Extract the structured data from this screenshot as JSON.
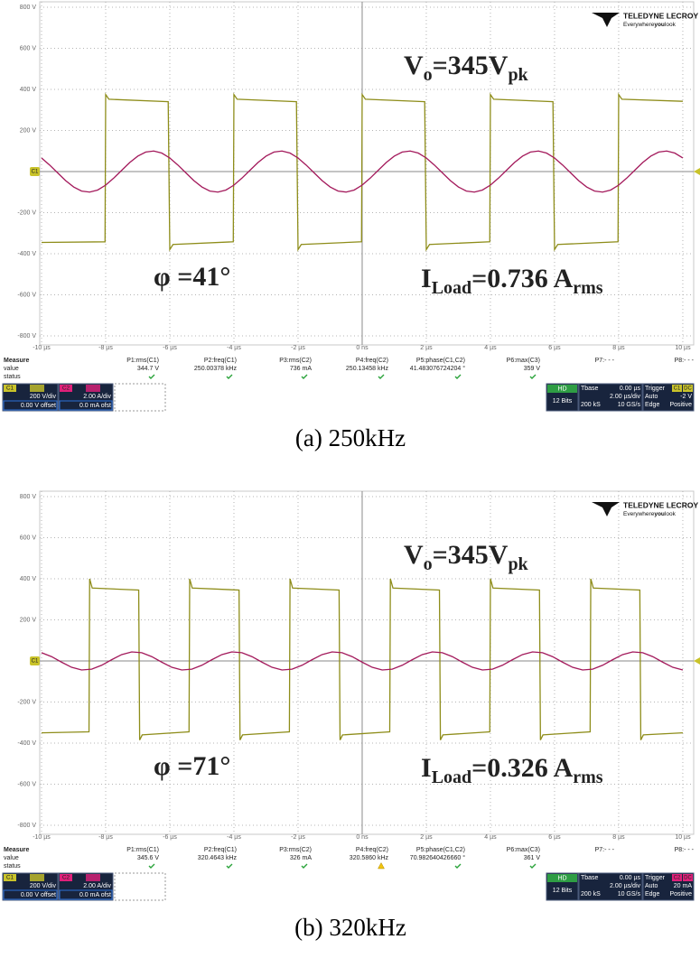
{
  "chart_data": [
    {
      "type": "line",
      "caption": "(a) 250kHz",
      "xlim": [
        -10,
        10.3
      ],
      "ylim": [
        -800,
        800
      ],
      "grid": true,
      "xticks": [
        {
          "value": -10,
          "label": "-10 µs"
        },
        {
          "value": -8,
          "label": "-8 µs"
        },
        {
          "value": -6,
          "label": "-6 µs"
        },
        {
          "value": -4,
          "label": "-4 µs"
        },
        {
          "value": -2,
          "label": "-2 µs"
        },
        {
          "value": 0,
          "label": "0 ns"
        },
        {
          "value": 2,
          "label": "2 µs"
        },
        {
          "value": 4,
          "label": "4 µs"
        },
        {
          "value": 6,
          "label": "6 µs"
        },
        {
          "value": 8,
          "label": "8 µs"
        },
        {
          "value": 10,
          "label": "10 µs"
        }
      ],
      "yticks": [
        {
          "value": 800,
          "label": "800 V"
        },
        {
          "value": 600,
          "label": "600 V"
        },
        {
          "value": 400,
          "label": "400 V"
        },
        {
          "value": 200,
          "label": "200 V"
        },
        0,
        {
          "value": -200,
          "label": "-200 V"
        },
        {
          "value": -400,
          "label": "-400 V"
        },
        {
          "value": -600,
          "label": "-600 V"
        },
        {
          "value": -800,
          "label": "-800 V"
        }
      ],
      "series": [
        {
          "name": "C1",
          "color": "#8e8d1a",
          "x": [
            -10,
            -8.02,
            -8,
            -7.9,
            -6.05,
            -6,
            -5.9,
            -4.02,
            -4,
            -3.9,
            -2.05,
            -2,
            -1.9,
            -0.02,
            0,
            0.1,
            1.95,
            2,
            2.1,
            3.98,
            4,
            4.1,
            5.95,
            6,
            6.1,
            7.98,
            8,
            8.1,
            10
          ],
          "values": [
            -345,
            -342,
            375,
            352,
            340,
            -380,
            -355,
            -342,
            375,
            352,
            340,
            -380,
            -355,
            -342,
            375,
            352,
            340,
            -380,
            -355,
            -342,
            375,
            352,
            340,
            -380,
            -355,
            -342,
            375,
            352,
            342
          ]
        },
        {
          "name": "C2",
          "color": "#a3195b",
          "x": [
            -10,
            -9.75,
            -9.5,
            -9.25,
            -9,
            -8.75,
            -8.5,
            -8.25,
            -8,
            -7.75,
            -7.5,
            -7.25,
            -7,
            -6.75,
            -6.5,
            -6.25,
            -6,
            -5.75,
            -5.5,
            -5.25,
            -5,
            -4.75,
            -4.5,
            -4.25,
            -4,
            -3.75,
            -3.5,
            -3.25,
            -3,
            -2.75,
            -2.5,
            -2.25,
            -2,
            -1.75,
            -1.5,
            -1.25,
            -1,
            -0.75,
            -0.5,
            -0.25,
            0,
            0.25,
            0.5,
            0.75,
            1,
            1.25,
            1.5,
            1.75,
            2,
            2.25,
            2.5,
            2.75,
            3,
            3.25,
            3.5,
            3.75,
            4,
            4.25,
            4.5,
            4.75,
            5,
            5.25,
            5.5,
            5.75,
            6,
            6.25,
            6.5,
            6.75,
            7,
            7.25,
            7.5,
            7.75,
            8,
            8.25,
            8.5,
            8.75,
            9,
            9.25,
            9.5,
            9.75,
            10
          ],
          "values": [
            66,
            32,
            -6,
            -44,
            -75,
            -95,
            -100,
            -90,
            -66,
            -32,
            6,
            44,
            75,
            95,
            100,
            90,
            66,
            32,
            -6,
            -44,
            -75,
            -95,
            -100,
            -90,
            -66,
            -32,
            6,
            44,
            75,
            95,
            100,
            90,
            66,
            32,
            -6,
            -44,
            -75,
            -95,
            -100,
            -90,
            -66,
            -32,
            6,
            44,
            75,
            95,
            100,
            90,
            66,
            32,
            -6,
            -44,
            -75,
            -95,
            -100,
            -90,
            -66,
            -32,
            6,
            44,
            75,
            95,
            100,
            90,
            66,
            32,
            -6,
            -44,
            -75,
            -95,
            -100,
            -90,
            -66,
            -32,
            6,
            44,
            75,
            95,
            100,
            90,
            66
          ]
        }
      ],
      "annotations": [
        {
          "color": "#f2c037",
          "segments": [
            {
              "text": "V"
            },
            {
              "text": "o",
              "sub": true
            },
            {
              "text": "=345V"
            },
            {
              "text": "pk",
              "sub": true
            }
          ]
        },
        {
          "color": "#1b1bd8",
          "segments": [
            {
              "text": "φ =41°"
            }
          ]
        },
        {
          "color": "#e23fb8",
          "segments": [
            {
              "text": "I"
            },
            {
              "text": "Load",
              "sub": true
            },
            {
              "text": "=0.736 A"
            },
            {
              "text": "rms",
              "sub": true
            }
          ]
        }
      ],
      "measure": {
        "title": "Measure",
        "rows": [
          "value",
          "status"
        ],
        "params": [
          {
            "name": "P1:rms(C1)",
            "value": "344.7 V",
            "status": "ok"
          },
          {
            "name": "P2:freq(C1)",
            "value": "250.00378 kHz",
            "status": "ok"
          },
          {
            "name": "P3:rms(C2)",
            "value": "736 mA",
            "status": "ok"
          },
          {
            "name": "P4:freq(C2)",
            "value": "250.13458 kHz",
            "status": "ok"
          },
          {
            "name": "P5:phase(C1,C2)",
            "value": "41.483076724204 °",
            "status": "ok"
          },
          {
            "name": "P6:max(C3)",
            "value": "359 V",
            "status": "ok"
          },
          {
            "name": "P7:- - -"
          },
          {
            "name": "P8:- - -"
          }
        ]
      },
      "channels": [
        {
          "scale": "200 V/div",
          "offset": "0.00 V offset",
          "color": "#c9c32a"
        },
        {
          "scale": "2.00 A/div",
          "offset": "0.0 mA ofst",
          "color": "#e0207a"
        }
      ],
      "acquisition": {
        "mode": "HD",
        "bits": "12 Bits"
      },
      "timebase": {
        "label": "Tbase",
        "delay": "0.00 µs",
        "scale": "2.00 µs/div",
        "samples": "200 kS",
        "rate": "10 GS/s"
      },
      "trigger": {
        "label": "Trigger",
        "source": "C1",
        "coupling": "DC",
        "color": "#c9c32a",
        "mode": "Auto",
        "level": "-2 V",
        "type": "Edge",
        "slope": "Positive"
      }
    },
    {
      "type": "line",
      "caption": "(b) 320kHz",
      "xlim": [
        -10,
        10.3
      ],
      "ylim": [
        -800,
        800
      ],
      "grid": true,
      "xticks": [
        {
          "value": -10,
          "label": "-10 µs"
        },
        {
          "value": -8,
          "label": "-8 µs"
        },
        {
          "value": -6,
          "label": "-6 µs"
        },
        {
          "value": -4,
          "label": "-4 µs"
        },
        {
          "value": -2,
          "label": "-2 µs"
        },
        {
          "value": 0,
          "label": "0 ns"
        },
        {
          "value": 2,
          "label": "2 µs"
        },
        {
          "value": 4,
          "label": "4 µs"
        },
        {
          "value": 6,
          "label": "6 µs"
        },
        {
          "value": 8,
          "label": "8 µs"
        },
        {
          "value": 10,
          "label": "10 µs"
        }
      ],
      "yticks": [
        {
          "value": 800,
          "label": "800 V"
        },
        {
          "value": 600,
          "label": "600 V"
        },
        {
          "value": 400,
          "label": "400 V"
        },
        {
          "value": 200,
          "label": "200 V"
        },
        0,
        {
          "value": -200,
          "label": "-200 V"
        },
        {
          "value": -400,
          "label": "-400 V"
        },
        {
          "value": -600,
          "label": "-600 V"
        },
        {
          "value": -800,
          "label": "-800 V"
        }
      ],
      "series": [
        {
          "name": "C1",
          "color": "#8e8d1a",
          "x": [
            -10,
            -8.52,
            -8.5,
            -8.42,
            -6.97,
            -6.94,
            -6.86,
            -5.4,
            -5.38,
            -5.3,
            -3.84,
            -3.81,
            -3.73,
            -2.27,
            -2.25,
            -2.17,
            -0.72,
            -0.69,
            -0.61,
            0.86,
            0.88,
            0.96,
            2.41,
            2.44,
            2.52,
            3.98,
            4,
            4.08,
            5.53,
            5.56,
            5.64,
            7.11,
            7.13,
            7.21,
            8.66,
            8.69,
            8.77,
            10
          ],
          "values": [
            -350,
            -345,
            400,
            355,
            345,
            -385,
            -360,
            -345,
            400,
            355,
            345,
            -385,
            -360,
            -345,
            400,
            355,
            345,
            -385,
            -360,
            -345,
            400,
            355,
            345,
            -385,
            -360,
            -345,
            400,
            355,
            345,
            -385,
            -360,
            -345,
            400,
            355,
            345,
            -385,
            -360,
            -350
          ]
        },
        {
          "name": "C2",
          "color": "#a3195b",
          "x": [
            -10,
            -9.6875,
            -9.375,
            -9.0625,
            -8.75,
            -8.4375,
            -8.125,
            -7.8125,
            -7.5,
            -7.1875,
            -6.875,
            -6.5625,
            -6.25,
            -5.9375,
            -5.625,
            -5.3125,
            -5,
            -4.6875,
            -4.375,
            -4.0625,
            -3.75,
            -3.4375,
            -3.125,
            -2.8125,
            -2.5,
            -2.1875,
            -1.875,
            -1.5625,
            -1.25,
            -0.9375,
            -0.625,
            -0.3125,
            0,
            0.3125,
            0.625,
            0.9375,
            1.25,
            1.5625,
            1.875,
            2.1875,
            2.5,
            2.8125,
            3.125,
            3.4375,
            3.75,
            4.0625,
            4.375,
            4.6875,
            5,
            5.3125,
            5.625,
            5.9375,
            6.25,
            6.5625,
            6.875,
            7.1875,
            7.5,
            7.8125,
            8.125,
            8.4375,
            8.75,
            9.0625,
            9.375,
            9.6875,
            10
          ],
          "values": [
            40,
            21,
            -6,
            -31,
            -44,
            -40,
            -21,
            6,
            31,
            44,
            40,
            21,
            -6,
            -31,
            -44,
            -40,
            -21,
            6,
            31,
            44,
            40,
            21,
            -6,
            -31,
            -44,
            -40,
            -21,
            6,
            31,
            44,
            40,
            21,
            -6,
            -31,
            -44,
            -40,
            -21,
            6,
            31,
            44,
            40,
            21,
            -6,
            -31,
            -44,
            -40,
            -21,
            6,
            31,
            44,
            40,
            21,
            -6,
            -31,
            -44,
            -40,
            -21,
            6,
            31,
            44,
            40,
            21,
            -6,
            -31,
            -44
          ]
        }
      ],
      "annotations": [
        {
          "color": "#f2c037",
          "segments": [
            {
              "text": "V"
            },
            {
              "text": "o",
              "sub": true
            },
            {
              "text": "=345V"
            },
            {
              "text": "pk",
              "sub": true
            }
          ]
        },
        {
          "color": "#1b1bd8",
          "segments": [
            {
              "text": "φ =71°"
            }
          ]
        },
        {
          "color": "#e23fb8",
          "segments": [
            {
              "text": "I"
            },
            {
              "text": "Load",
              "sub": true
            },
            {
              "text": "=0.326 A"
            },
            {
              "text": "rms",
              "sub": true
            }
          ]
        }
      ],
      "measure": {
        "title": "Measure",
        "rows": [
          "value",
          "status"
        ],
        "params": [
          {
            "name": "P1:rms(C1)",
            "value": "345.6 V",
            "status": "ok"
          },
          {
            "name": "P2:freq(C1)",
            "value": "320.4643 kHz",
            "status": "ok"
          },
          {
            "name": "P3:rms(C2)",
            "value": "326 mA",
            "status": "ok"
          },
          {
            "name": "P4:freq(C2)",
            "value": "320.5860 kHz",
            "status": "warn"
          },
          {
            "name": "P5:phase(C1,C2)",
            "value": "70.982640426660 °",
            "status": "ok"
          },
          {
            "name": "P6:max(C3)",
            "value": "361 V",
            "status": "ok"
          },
          {
            "name": "P7:- - -"
          },
          {
            "name": "P8:- - -"
          }
        ]
      },
      "channels": [
        {
          "scale": "200 V/div",
          "offset": "0.00 V offset",
          "color": "#c9c32a"
        },
        {
          "scale": "2.00 A/div",
          "offset": "0.0 mA ofst",
          "color": "#e0207a"
        }
      ],
      "acquisition": {
        "mode": "HD",
        "bits": "12 Bits"
      },
      "timebase": {
        "label": "Tbase",
        "delay": "0.00 µs",
        "scale": "2.00 µs/div",
        "samples": "200 kS",
        "rate": "10 GS/s"
      },
      "trigger": {
        "label": "Trigger",
        "source": "C2",
        "coupling": "DC",
        "color": "#e0207a",
        "mode": "Auto",
        "level": "20 mA",
        "type": "Edge",
        "slope": "Positive"
      }
    }
  ],
  "logo": {
    "brand": "TELEDYNE LECROY",
    "tagline": [
      "Everywhere",
      "you",
      "look"
    ]
  }
}
